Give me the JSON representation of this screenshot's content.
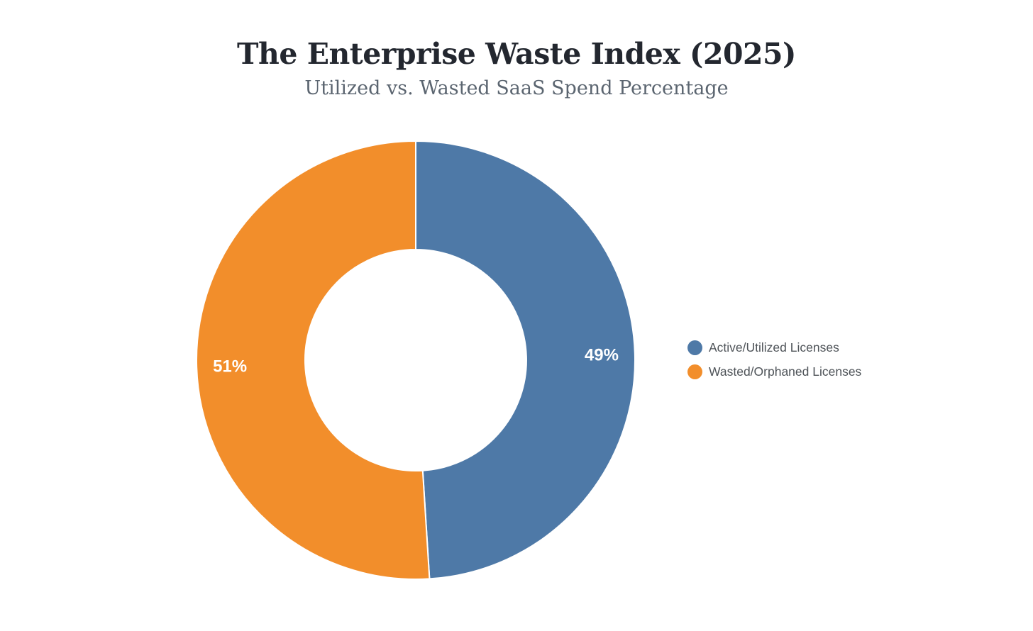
{
  "page": {
    "background": "#ffffff"
  },
  "chart_data": {
    "type": "pie",
    "subtype": "donut",
    "title": "The Enterprise Waste Index (2025)",
    "subtitle": "Utilized vs. Wasted SaaS Spend Percentage",
    "labels": [
      "Active/Utilized Licenses",
      "Wasted/Orphaned Licenses"
    ],
    "values": [
      49,
      51
    ],
    "value_labels": [
      "49%",
      "51%"
    ],
    "colors": [
      "#4e79a7",
      "#f28e2b"
    ],
    "value_label_color": "#ffffff",
    "slice_border_color": "#ffffff",
    "start_angle_deg": 0,
    "direction": "clockwise",
    "inner_radius_ratio": 0.505,
    "legend_position": "right",
    "background": "#ffffff"
  }
}
